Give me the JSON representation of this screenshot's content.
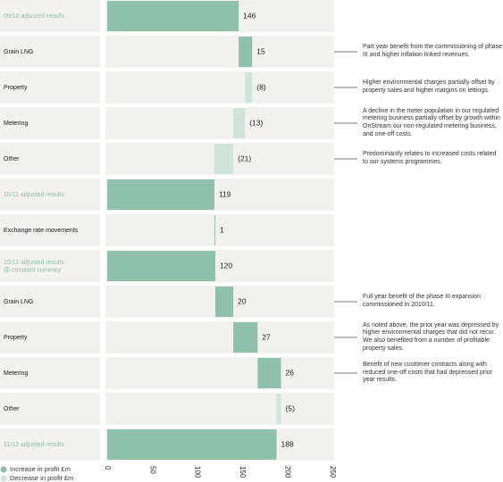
{
  "chart_data": {
    "type": "waterfall",
    "categories": [
      "09/10 adjusted results",
      "Grain LNG",
      "Property",
      "Metering",
      "Other",
      "10/11 adjusted results",
      "Exchange rate movements",
      "10/11 adjusted results\n@ constant currency",
      "Grain LNG",
      "Property",
      "Metering",
      "Other",
      "11/12 adjusted results"
    ],
    "values": [
      146,
      15,
      -8,
      -13,
      -21,
      119,
      1,
      120,
      20,
      27,
      26,
      -5,
      188
    ],
    "value_labels": [
      "146",
      "15",
      "(8)",
      "(13)",
      "(21)",
      "119",
      "1",
      "120",
      "20",
      "27",
      "26",
      "(5)",
      "188"
    ],
    "is_total": [
      true,
      false,
      false,
      false,
      false,
      true,
      false,
      true,
      false,
      false,
      false,
      false,
      true
    ],
    "annotations": [
      null,
      "Part year benefit from the commissioning of phase III and higher inflation linked revenues.",
      "Higher environmental charges partially offset by property sales and higher margins on lettings.",
      "A decline in the meter population in our regulated metering business partially offset by growth within OnStream our non-regulated metering business, and one-off costs.",
      "Predominantly relates to increased costs related to our systems programmes.",
      null,
      null,
      null,
      "Full year benefit of the phase III expansion commissioned in 2010/11.",
      "As noted above, the prior year was depressed by higher environmental charges that did not recur. We also benefited from a number of profitable property sales.",
      "Benefit of new customer contracts along with reduced one-off costs that had depressed prior year results.",
      null,
      null
    ],
    "increase_color": "#8fc0aa",
    "decrease_color": "#cfe4da",
    "total_label_color": "#8fc0aa",
    "legend": [
      "Increase in profit £m",
      "Decrease in profit £m"
    ],
    "xlim": [
      0,
      250
    ],
    "xticks": [
      0,
      50,
      100,
      150,
      200,
      250
    ]
  }
}
